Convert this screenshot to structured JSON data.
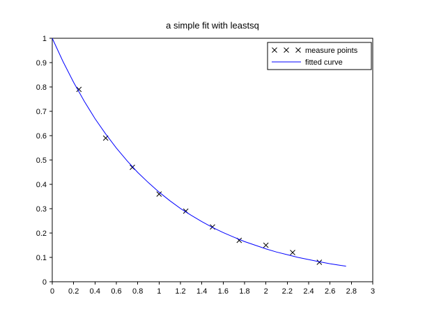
{
  "figure": {
    "title": "a simple fit with leastsq",
    "background": "#ffffff",
    "axis_color": "#000000",
    "curve_color": "#0000ff",
    "marker_color": "#000000"
  },
  "chart_data": {
    "type": "scatter",
    "title": "a simple fit with leastsq",
    "xlabel": "",
    "ylabel": "",
    "xlim": [
      0,
      3
    ],
    "ylim": [
      0,
      1
    ],
    "x_ticks": [
      0,
      0.2,
      0.4,
      0.6,
      0.8,
      1,
      1.2,
      1.4,
      1.6,
      1.8,
      2,
      2.2,
      2.4,
      2.6,
      2.8,
      3
    ],
    "y_ticks": [
      0,
      0.1,
      0.2,
      0.3,
      0.4,
      0.5,
      0.6,
      0.7,
      0.8,
      0.9,
      1
    ],
    "grid": false,
    "legend_position": "top-right",
    "series": [
      {
        "name": "measure points",
        "type": "scatter",
        "marker": "x",
        "color": "#000000",
        "x": [
          0.25,
          0.5,
          0.75,
          1.0,
          1.25,
          1.5,
          1.75,
          2.0,
          2.25,
          2.5
        ],
        "y": [
          0.79,
          0.59,
          0.47,
          0.36,
          0.29,
          0.225,
          0.17,
          0.15,
          0.12,
          0.08
        ]
      },
      {
        "name": "fitted curve",
        "type": "line",
        "color": "#0000ff",
        "x": [
          0,
          0.1,
          0.2,
          0.3,
          0.4,
          0.5,
          0.6,
          0.7,
          0.8,
          0.9,
          1.0,
          1.1,
          1.2,
          1.3,
          1.4,
          1.5,
          1.6,
          1.7,
          1.8,
          1.9,
          2.0,
          2.1,
          2.2,
          2.3,
          2.4,
          2.5,
          2.6,
          2.7,
          2.75
        ],
        "y": [
          1,
          0.905,
          0.819,
          0.741,
          0.67,
          0.607,
          0.549,
          0.497,
          0.449,
          0.407,
          0.368,
          0.333,
          0.301,
          0.273,
          0.247,
          0.223,
          0.202,
          0.183,
          0.165,
          0.15,
          0.135,
          0.122,
          0.111,
          0.1,
          0.091,
          0.082,
          0.074,
          0.067,
          0.064
        ]
      }
    ]
  }
}
